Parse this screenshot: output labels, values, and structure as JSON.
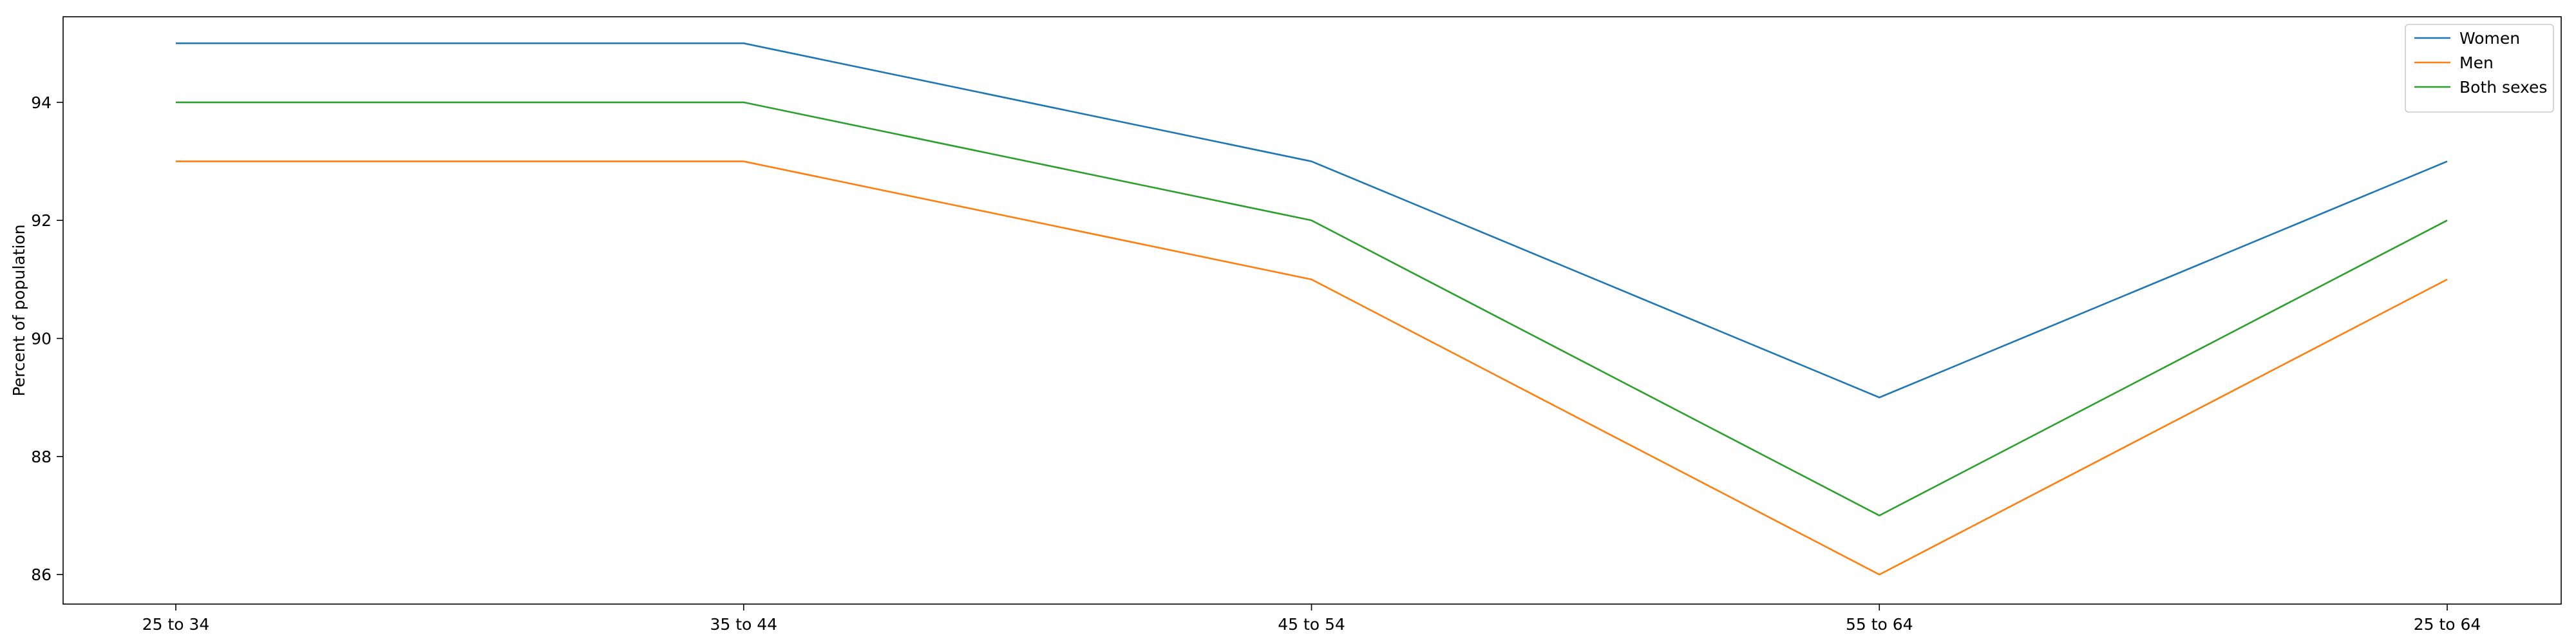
{
  "chart_data": {
    "type": "line",
    "title": "",
    "xlabel": "",
    "ylabel": "Percent of population",
    "categories": [
      "25 to 34",
      "35 to 44",
      "45 to 54",
      "55 to 64",
      "25 to 64"
    ],
    "ylim": [
      85.5,
      95.45
    ],
    "yticks": [
      86,
      88,
      90,
      92,
      94
    ],
    "grid": false,
    "legend_position": "top-right",
    "series": [
      {
        "name": "Women",
        "color": "#1f77b4",
        "values": [
          95,
          95,
          93,
          89,
          93
        ]
      },
      {
        "name": "Men",
        "color": "#ff7f0e",
        "values": [
          93,
          93,
          91,
          86,
          91
        ]
      },
      {
        "name": "Both sexes",
        "color": "#2ca02c",
        "values": [
          94,
          94,
          92,
          87,
          92
        ]
      }
    ]
  }
}
